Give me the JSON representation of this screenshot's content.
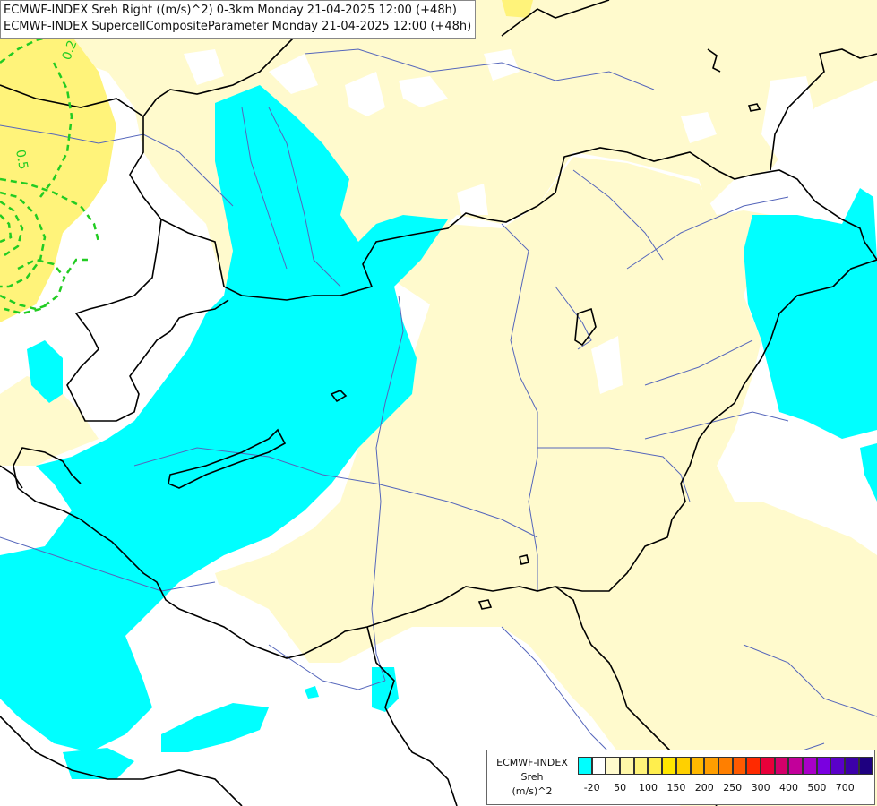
{
  "title": {
    "line1": "ECMWF-INDEX Sreh Right ((m/s)^2) 0-3km Monday 21-04-2025 12:00 (+48h)",
    "line2": "ECMWF-INDEX SupercellCompositeParameter Monday 21-04-2025 12:00 (+48h)"
  },
  "contour_labels": [
    "0.2",
    "0.5"
  ],
  "legend": {
    "model": "ECMWF-INDEX",
    "variable": "Sreh",
    "unit": "(m/s)^2",
    "colors": [
      "#00ffff",
      "#ffffff",
      "#fffacd",
      "#fff7a8",
      "#fff37a",
      "#ffee4d",
      "#ffe600",
      "#ffd000",
      "#ffb800",
      "#ff9e00",
      "#ff7f00",
      "#ff5a00",
      "#ff2a00",
      "#e8003a",
      "#d4006a",
      "#c2009a",
      "#a800c8",
      "#7a00e0",
      "#5a00c8",
      "#3c00a8",
      "#1e0080"
    ],
    "tick_labels": [
      "-20",
      "50",
      "100",
      "150",
      "200",
      "250",
      "300",
      "400",
      "500",
      "700"
    ]
  },
  "fill_colors": {
    "cyan_low": "#00ffff",
    "pale_yellow": "#fffacd",
    "yellow": "#fff37a",
    "white": "#ffffff",
    "contour_green": "#22cc22",
    "border": "#000000",
    "river": "#5566bb"
  }
}
